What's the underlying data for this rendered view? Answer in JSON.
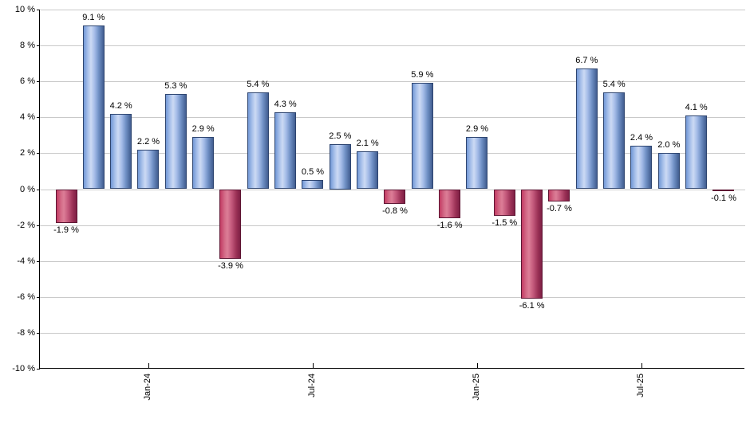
{
  "chart_data": {
    "type": "bar",
    "title": "",
    "xlabel": "",
    "ylabel": "",
    "ylim": [
      -10,
      10
    ],
    "grid": "horizontal-light-gray",
    "legend": "none",
    "positive_color": "#7298d6",
    "negative_color": "#c33b63",
    "values": [
      -1.9,
      9.1,
      4.2,
      2.2,
      5.3,
      2.9,
      -3.9,
      5.4,
      4.3,
      0.5,
      2.5,
      2.1,
      -0.8,
      5.9,
      -1.6,
      2.9,
      -1.5,
      -6.1,
      -0.7,
      6.7,
      5.4,
      2.4,
      2.0,
      4.1,
      -0.1
    ],
    "bar_labels": [
      "-1.9 %",
      "9.1 %",
      "4.2 %",
      "2.2 %",
      "5.3 %",
      "2.9 %",
      "-3.9 %",
      "5.4 %",
      "4.3 %",
      "0.5 %",
      "2.5 %",
      "2.1 %",
      "-0.8 %",
      "5.9 %",
      "-1.6 %",
      "2.9 %",
      "-1.5 %",
      "-6.1 %",
      "-0.7 %",
      "6.7 %",
      "5.4 %",
      "2.4 %",
      "2.0 %",
      "4.1 %",
      "-0.1 %"
    ],
    "y_ticks": [
      {
        "value": 10,
        "label": "10 %"
      },
      {
        "value": 8,
        "label": "8 %"
      },
      {
        "value": 6,
        "label": "6 %"
      },
      {
        "value": 4,
        "label": "4 %"
      },
      {
        "value": 2,
        "label": "2 %"
      },
      {
        "value": 0,
        "label": "0 %"
      },
      {
        "value": -2,
        "label": "-2 %"
      },
      {
        "value": -4,
        "label": "-4 %"
      },
      {
        "value": -6,
        "label": "-6 %"
      },
      {
        "value": -8,
        "label": "-8 %"
      },
      {
        "value": -10,
        "label": "-10 %"
      }
    ],
    "x_ticks": [
      {
        "label": "Jan-24",
        "bar_index": 3
      },
      {
        "label": "Jul-24",
        "bar_index": 9
      },
      {
        "label": "Jan-25",
        "bar_index": 15
      },
      {
        "label": "Jul-25",
        "bar_index": 21
      }
    ]
  }
}
